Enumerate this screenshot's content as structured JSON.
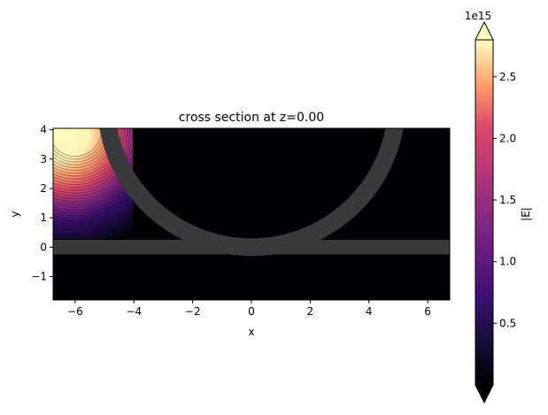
{
  "chart_data": {
    "type": "heatmap",
    "title": "cross section at z=0.00",
    "xlabel": "x",
    "ylabel": "y",
    "xlim": [
      -6.75,
      6.75
    ],
    "ylim": [
      -1.8,
      4.05
    ],
    "xticks": [
      -6,
      -4,
      -2,
      0,
      2,
      4,
      6
    ],
    "xtick_labels": [
      "−6",
      "−4",
      "−2",
      "0",
      "2",
      "4",
      "6"
    ],
    "yticks": [
      -1,
      0,
      1,
      2,
      3,
      4
    ],
    "ytick_labels": [
      "−1",
      "0",
      "1",
      "2",
      "3",
      "4"
    ],
    "colormap": "magma",
    "colorbar": {
      "label": "|E|",
      "range": [
        0.0,
        2.8
      ],
      "ticks": [
        0.5,
        1.0,
        1.5,
        2.0,
        2.5
      ],
      "tick_labels": [
        "0.5",
        "1.0",
        "1.5",
        "2.0",
        "2.5"
      ],
      "exponent_label": "1e15",
      "extend": "both"
    },
    "structures": [
      {
        "type": "ring",
        "center": [
          0,
          4.95
        ],
        "inner_radius": 4.65,
        "outer_radius": 5.25,
        "color": "#3a393c"
      },
      {
        "type": "waveguide",
        "y_range": [
          -0.25,
          0.25
        ],
        "x_range": [
          -6.75,
          6.75
        ],
        "color": "#3a393c"
      }
    ],
    "field_hotspot": {
      "x_range": [
        -6.75,
        -4.2
      ],
      "y_range": [
        0.3,
        4.05
      ],
      "peak_near": [
        -6.0,
        4.0
      ]
    }
  }
}
